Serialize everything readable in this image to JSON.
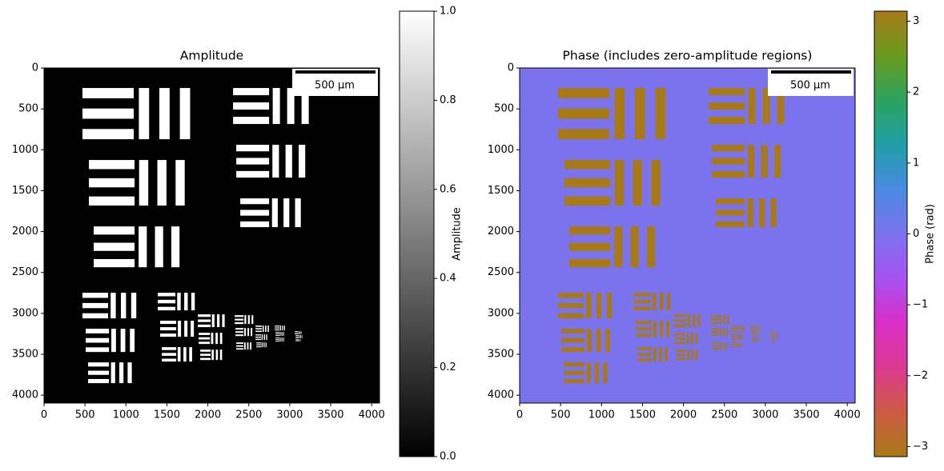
{
  "chart_data": [
    {
      "type": "image",
      "title": "Amplitude",
      "xlim": [
        0,
        4096
      ],
      "ylim": [
        4096,
        0
      ],
      "xticks": [
        0,
        500,
        1000,
        1500,
        2000,
        2500,
        3000,
        3500,
        4000
      ],
      "yticks": [
        0,
        500,
        1000,
        1500,
        2000,
        2500,
        3000,
        3500,
        4000
      ],
      "background_value": 0,
      "target_value": 1,
      "colorbar": {
        "label": "Amplitude",
        "lim": [
          0,
          1
        ],
        "ticks": [
          {
            "value": 0,
            "label": "0.0"
          },
          {
            "value": 0.2,
            "label": "0.2"
          },
          {
            "value": 0.4,
            "label": "0.4"
          },
          {
            "value": 0.6,
            "label": "0.6"
          },
          {
            "value": 0.8,
            "label": "0.8"
          },
          {
            "value": 1,
            "label": "1.0"
          }
        ],
        "colors": [
          "#000000",
          "#ffffff"
        ]
      },
      "scalebar": {
        "label": "500 µm"
      },
      "targets": {
        "x": [
          469,
          548,
          606,
          2308,
          2347,
          2396,
          469,
          509,
          538,
          1389,
          1418,
          1438,
          1878,
          1888,
          1907,
          2328,
          2337,
          2347,
          2582,
          2582,
          2592,
          2817,
          2826,
          2826,
          3061,
          3071,
          3071
        ],
        "y": [
          245,
          1125,
          1937,
          245,
          939,
          1594,
          2748,
          3188,
          3599,
          2748,
          3090,
          3413,
          3012,
          3237,
          3443,
          3022,
          3179,
          3355,
          3149,
          3257,
          3355,
          3149,
          3227,
          3296,
          3218,
          3266,
          3315
        ],
        "size": [
          626,
          557,
          499,
          440,
          401,
          352,
          313,
          284,
          254,
          215,
          196,
          176,
          156,
          137,
          127,
          108,
          98,
          88,
          78,
          68,
          59,
          59,
          49,
          49,
          39,
          39,
          29
        ]
      }
    },
    {
      "type": "image",
      "title": "Phase (includes zero-amplitude regions)",
      "xlim": [
        0,
        4096
      ],
      "ylim": [
        4096,
        0
      ],
      "xticks": [
        0,
        500,
        1000,
        1500,
        2000,
        2500,
        3000,
        3500,
        4000
      ],
      "yticks": [
        0,
        500,
        1000,
        1500,
        2000,
        2500,
        3000,
        3500,
        4000
      ],
      "background_value": 0,
      "target_value": 3.14159,
      "colorbar": {
        "label": "Phase (rad)",
        "lim": [
          -3.14159,
          3.14159
        ],
        "ticks": [
          {
            "value": -3,
            "label": "−3"
          },
          {
            "value": -2,
            "label": "−2"
          },
          {
            "value": -1,
            "label": "−1"
          },
          0,
          1,
          2,
          3
        ],
        "colors": [
          "#a87a16",
          "#cc5a45",
          "#dc3a90",
          "#d82ec8",
          "#a652f2",
          "#7b73ee",
          "#4a8ae2",
          "#1f9ea6",
          "#2aa35e",
          "#6a9a1e",
          "#a87a16"
        ]
      },
      "scalebar": {
        "label": "500 µm"
      },
      "targets": {
        "x": [
          469,
          548,
          606,
          2308,
          2347,
          2396,
          469,
          509,
          538,
          1389,
          1418,
          1438,
          1878,
          1888,
          1907,
          2328,
          2337,
          2347,
          2582,
          2582,
          2592,
          2817,
          2826,
          2826,
          3061,
          3071,
          3071
        ],
        "y": [
          245,
          1125,
          1937,
          245,
          939,
          1594,
          2748,
          3188,
          3599,
          2748,
          3090,
          3413,
          3012,
          3237,
          3443,
          3022,
          3179,
          3355,
          3149,
          3257,
          3355,
          3149,
          3227,
          3296,
          3218,
          3266,
          3315
        ],
        "size": [
          626,
          557,
          499,
          440,
          401,
          352,
          313,
          284,
          254,
          215,
          196,
          176,
          156,
          137,
          127,
          108,
          98,
          88,
          78,
          68,
          59,
          59,
          49,
          49,
          39,
          39,
          29
        ]
      }
    }
  ]
}
